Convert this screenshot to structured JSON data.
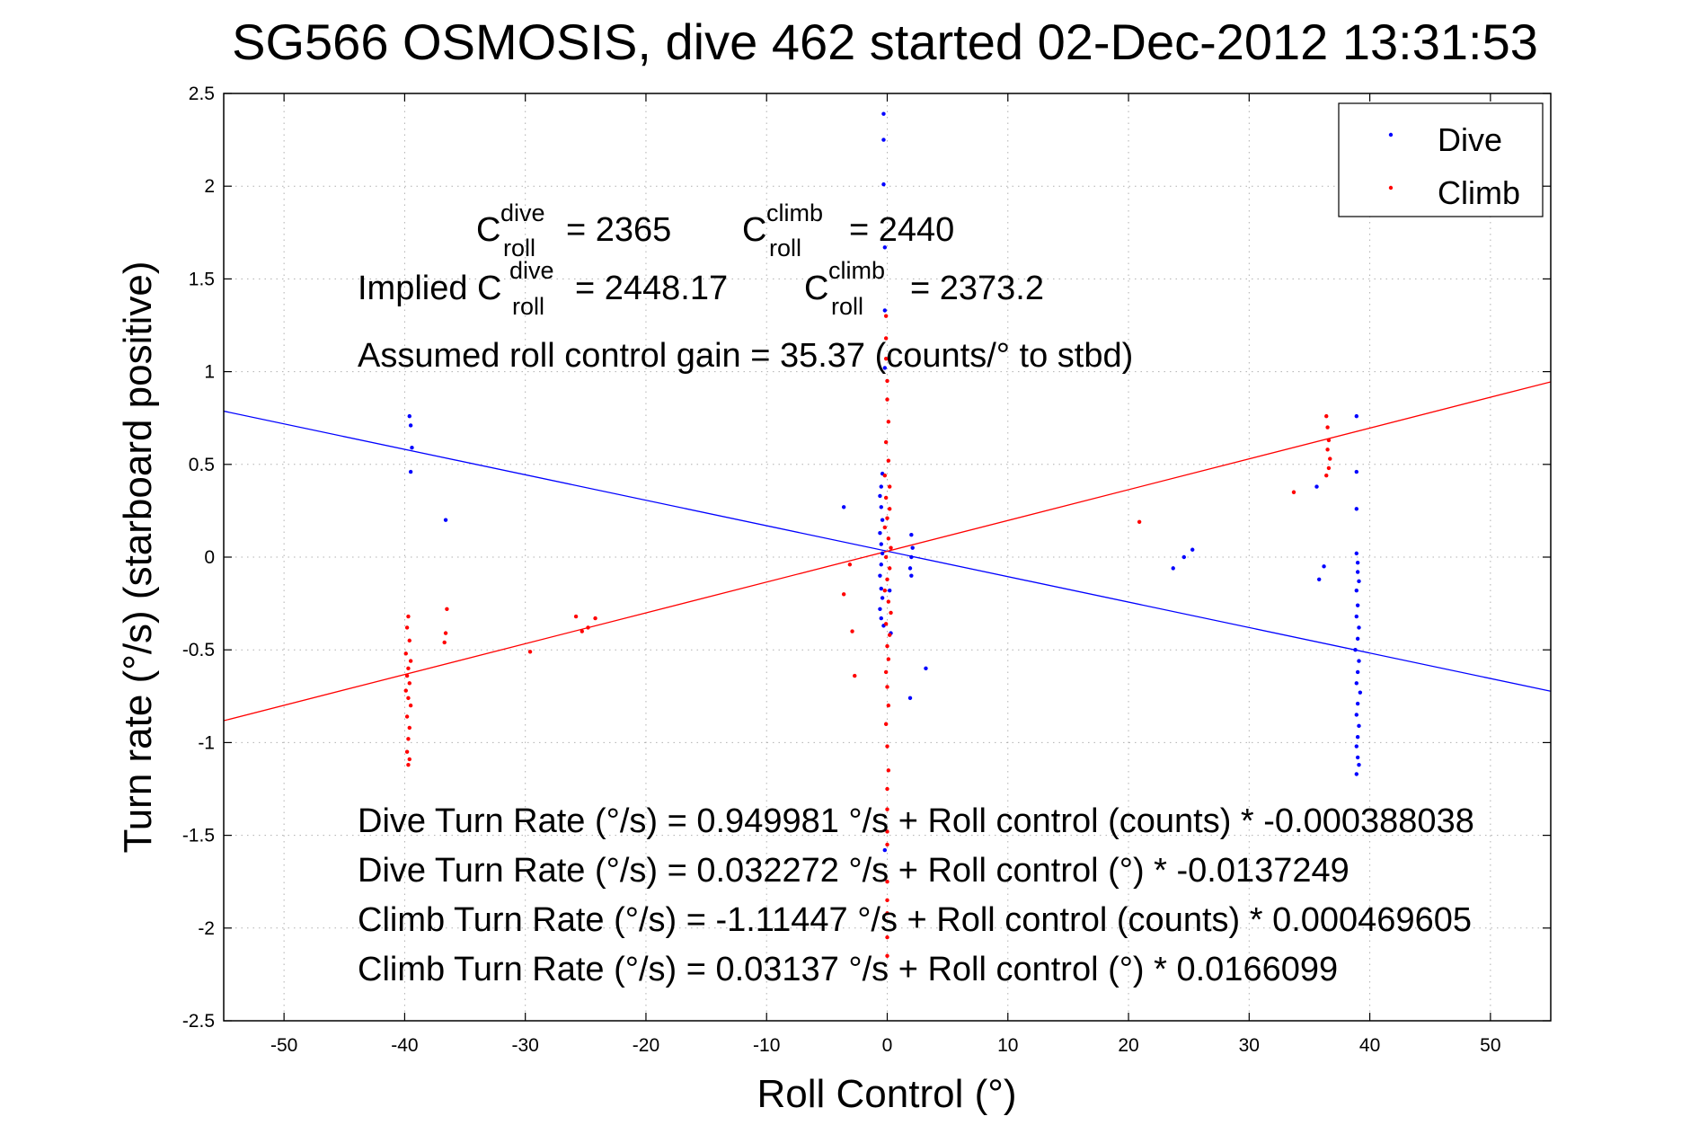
{
  "chart_data": {
    "type": "scatter",
    "title": "SG566 OSMOSIS, dive 462 started 02-Dec-2012 13:31:53",
    "xlabel": "Roll Control (°)",
    "ylabel": "Turn rate (°/s)  (starboard positive)",
    "xlim": [
      -55,
      55
    ],
    "ylim": [
      -2.5,
      2.5
    ],
    "xticks": [
      -50,
      -40,
      -30,
      -20,
      -10,
      0,
      10,
      20,
      30,
      40,
      50
    ],
    "xtick_labels": [
      "-50",
      "-40",
      "-30",
      "-20",
      "-10",
      "0",
      "10",
      "20",
      "30",
      "40",
      "50"
    ],
    "yticks": [
      -2.5,
      -2,
      -1.5,
      -1,
      -0.5,
      0,
      0.5,
      1,
      1.5,
      2,
      2.5
    ],
    "ytick_labels": [
      "-2.5",
      "-2",
      "-1.5",
      "-1",
      "-0.5",
      "0",
      "0.5",
      "1",
      "1.5",
      "2",
      "2.5"
    ],
    "grid": true,
    "legend_position": "top-right",
    "series": [
      {
        "name": "Dive",
        "color": "#0000ff",
        "points": [
          [
            -39.6,
            0.76
          ],
          [
            -39.5,
            0.71
          ],
          [
            -39.4,
            0.59
          ],
          [
            -39.5,
            0.46
          ],
          [
            -36.6,
            0.2
          ],
          [
            -3.6,
            0.27
          ],
          [
            -0.3,
            2.39
          ],
          [
            -0.3,
            2.25
          ],
          [
            -0.3,
            2.01
          ],
          [
            -0.2,
            1.67
          ],
          [
            -0.2,
            1.33
          ],
          [
            -0.2,
            1.02
          ],
          [
            -0.4,
            0.45
          ],
          [
            -0.5,
            0.38
          ],
          [
            -0.6,
            0.33
          ],
          [
            -0.5,
            0.27
          ],
          [
            -0.4,
            0.2
          ],
          [
            -0.6,
            0.13
          ],
          [
            -0.5,
            0.07
          ],
          [
            -0.4,
            0.02
          ],
          [
            -0.5,
            -0.04
          ],
          [
            -0.6,
            -0.1
          ],
          [
            -0.5,
            -0.17
          ],
          [
            -0.4,
            -0.22
          ],
          [
            -0.6,
            -0.28
          ],
          [
            -0.5,
            -0.33
          ],
          [
            -0.3,
            -0.37
          ],
          [
            -0.2,
            -1.58
          ],
          [
            0.2,
            -0.18
          ],
          [
            0.3,
            -0.41
          ],
          [
            2.0,
            0.12
          ],
          [
            2.1,
            0.05
          ],
          [
            2.0,
            0.0
          ],
          [
            1.9,
            -0.06
          ],
          [
            2.0,
            -0.1
          ],
          [
            1.9,
            -0.76
          ],
          [
            3.2,
            -0.6
          ],
          [
            23.7,
            -0.06
          ],
          [
            24.6,
            0.0
          ],
          [
            25.3,
            0.04
          ],
          [
            35.6,
            0.38
          ],
          [
            35.8,
            -0.12
          ],
          [
            36.2,
            -0.05
          ],
          [
            38.9,
            0.76
          ],
          [
            38.9,
            0.46
          ],
          [
            38.9,
            0.26
          ],
          [
            38.9,
            0.02
          ],
          [
            39.0,
            -0.03
          ],
          [
            39.0,
            -0.08
          ],
          [
            39.1,
            -0.13
          ],
          [
            38.9,
            -0.18
          ],
          [
            39.0,
            -0.26
          ],
          [
            38.9,
            -0.32
          ],
          [
            39.1,
            -0.38
          ],
          [
            39.0,
            -0.44
          ],
          [
            38.8,
            -0.5
          ],
          [
            39.1,
            -0.56
          ],
          [
            39.0,
            -0.62
          ],
          [
            38.9,
            -0.68
          ],
          [
            39.2,
            -0.73
          ],
          [
            39.0,
            -0.79
          ],
          [
            38.9,
            -0.85
          ],
          [
            39.1,
            -0.91
          ],
          [
            39.0,
            -0.97
          ],
          [
            38.9,
            -1.02
          ],
          [
            39.0,
            -1.08
          ],
          [
            39.1,
            -1.12
          ],
          [
            38.9,
            -1.17
          ]
        ]
      },
      {
        "name": "Climb",
        "color": "#ff0000",
        "points": [
          [
            -39.7,
            -0.32
          ],
          [
            -39.8,
            -0.38
          ],
          [
            -39.6,
            -0.45
          ],
          [
            -39.9,
            -0.52
          ],
          [
            -39.5,
            -0.56
          ],
          [
            -39.7,
            -0.6
          ],
          [
            -39.8,
            -0.64
          ],
          [
            -39.6,
            -0.68
          ],
          [
            -39.9,
            -0.72
          ],
          [
            -39.7,
            -0.76
          ],
          [
            -39.5,
            -0.8
          ],
          [
            -39.8,
            -0.86
          ],
          [
            -39.6,
            -0.92
          ],
          [
            -39.7,
            -0.98
          ],
          [
            -39.8,
            -1.05
          ],
          [
            -39.6,
            -1.09
          ],
          [
            -39.7,
            -1.12
          ],
          [
            -36.5,
            -0.28
          ],
          [
            -36.6,
            -0.41
          ],
          [
            -36.7,
            -0.46
          ],
          [
            -29.6,
            -0.51
          ],
          [
            -25.8,
            -0.32
          ],
          [
            -25.3,
            -0.4
          ],
          [
            -24.8,
            -0.38
          ],
          [
            -24.2,
            -0.33
          ],
          [
            -3.6,
            -0.2
          ],
          [
            -3.1,
            -0.04
          ],
          [
            -2.9,
            -0.4
          ],
          [
            -2.7,
            -0.64
          ],
          [
            -0.1,
            1.3
          ],
          [
            -0.1,
            1.18
          ],
          [
            -0.1,
            1.07
          ],
          [
            0.0,
            0.95
          ],
          [
            0.0,
            0.85
          ],
          [
            0.1,
            0.73
          ],
          [
            -0.1,
            0.62
          ],
          [
            0.1,
            0.52
          ],
          [
            -0.2,
            0.44
          ],
          [
            0.2,
            0.38
          ],
          [
            -0.1,
            0.32
          ],
          [
            0.2,
            0.26
          ],
          [
            0.0,
            0.21
          ],
          [
            -0.2,
            0.16
          ],
          [
            0.1,
            0.1
          ],
          [
            0.3,
            0.05
          ],
          [
            -0.1,
            0.0
          ],
          [
            0.2,
            -0.06
          ],
          [
            0.0,
            -0.12
          ],
          [
            -0.2,
            -0.18
          ],
          [
            0.1,
            -0.24
          ],
          [
            0.3,
            -0.3
          ],
          [
            -0.1,
            -0.36
          ],
          [
            0.2,
            -0.42
          ],
          [
            0.0,
            -0.48
          ],
          [
            0.1,
            -0.55
          ],
          [
            -0.1,
            -0.62
          ],
          [
            0.0,
            -0.7
          ],
          [
            0.1,
            -0.8
          ],
          [
            -0.1,
            -0.9
          ],
          [
            0.0,
            -1.02
          ],
          [
            0.1,
            -1.15
          ],
          [
            0.0,
            -1.25
          ],
          [
            0.0,
            -1.36
          ],
          [
            0.0,
            -1.48
          ],
          [
            0.0,
            -1.55
          ],
          [
            0.0,
            -1.75
          ],
          [
            0.0,
            -1.85
          ],
          [
            0.0,
            -1.92
          ],
          [
            0.0,
            -2.05
          ],
          [
            0.0,
            -2.15
          ],
          [
            20.9,
            0.19
          ],
          [
            33.7,
            0.35
          ],
          [
            36.4,
            0.76
          ],
          [
            36.5,
            0.7
          ],
          [
            36.6,
            0.63
          ],
          [
            36.5,
            0.58
          ],
          [
            36.7,
            0.53
          ],
          [
            36.6,
            0.48
          ],
          [
            36.4,
            0.44
          ]
        ]
      }
    ],
    "fit_lines": [
      {
        "series": "Dive",
        "color": "#0000ff",
        "x": [
          -55,
          55
        ],
        "y": [
          0.787,
          -0.723
        ]
      },
      {
        "series": "Climb",
        "color": "#ff0000",
        "x": [
          -55,
          55
        ],
        "y": [
          -0.882,
          0.945
        ]
      }
    ],
    "annotations": {
      "c_dive_main": "C",
      "c_dive_sup": "dive",
      "c_dive_sub": "roll",
      "c_dive_value": "= 2365",
      "c_climb_main": "C",
      "c_climb_sup": "climb",
      "c_climb_sub": "roll",
      "c_climb_value": "= 2440",
      "implied_prefix": "Implied C",
      "implied_dive_sup": "dive",
      "implied_dive_sub": "roll",
      "implied_dive_value": "= 2448.17",
      "implied_climb_main": "C",
      "implied_climb_sup": "climb",
      "implied_climb_sub": "roll",
      "implied_climb_value": "= 2373.2",
      "gain": "Assumed roll control gain = 35.37 (counts/° to stbd)",
      "eq1": "Dive Turn Rate (°/s) = 0.949981 °/s + Roll control (counts) * -0.000388038",
      "eq2": "Dive Turn Rate (°/s) = 0.032272 °/s + Roll control (°) * -0.0137249",
      "eq3": "Climb Turn Rate (°/s) = -1.11447 °/s + Roll control (counts) * 0.000469605",
      "eq4": "Climb Turn Rate (°/s) = 0.03137 °/s + Roll control (°) * 0.0166099"
    }
  }
}
